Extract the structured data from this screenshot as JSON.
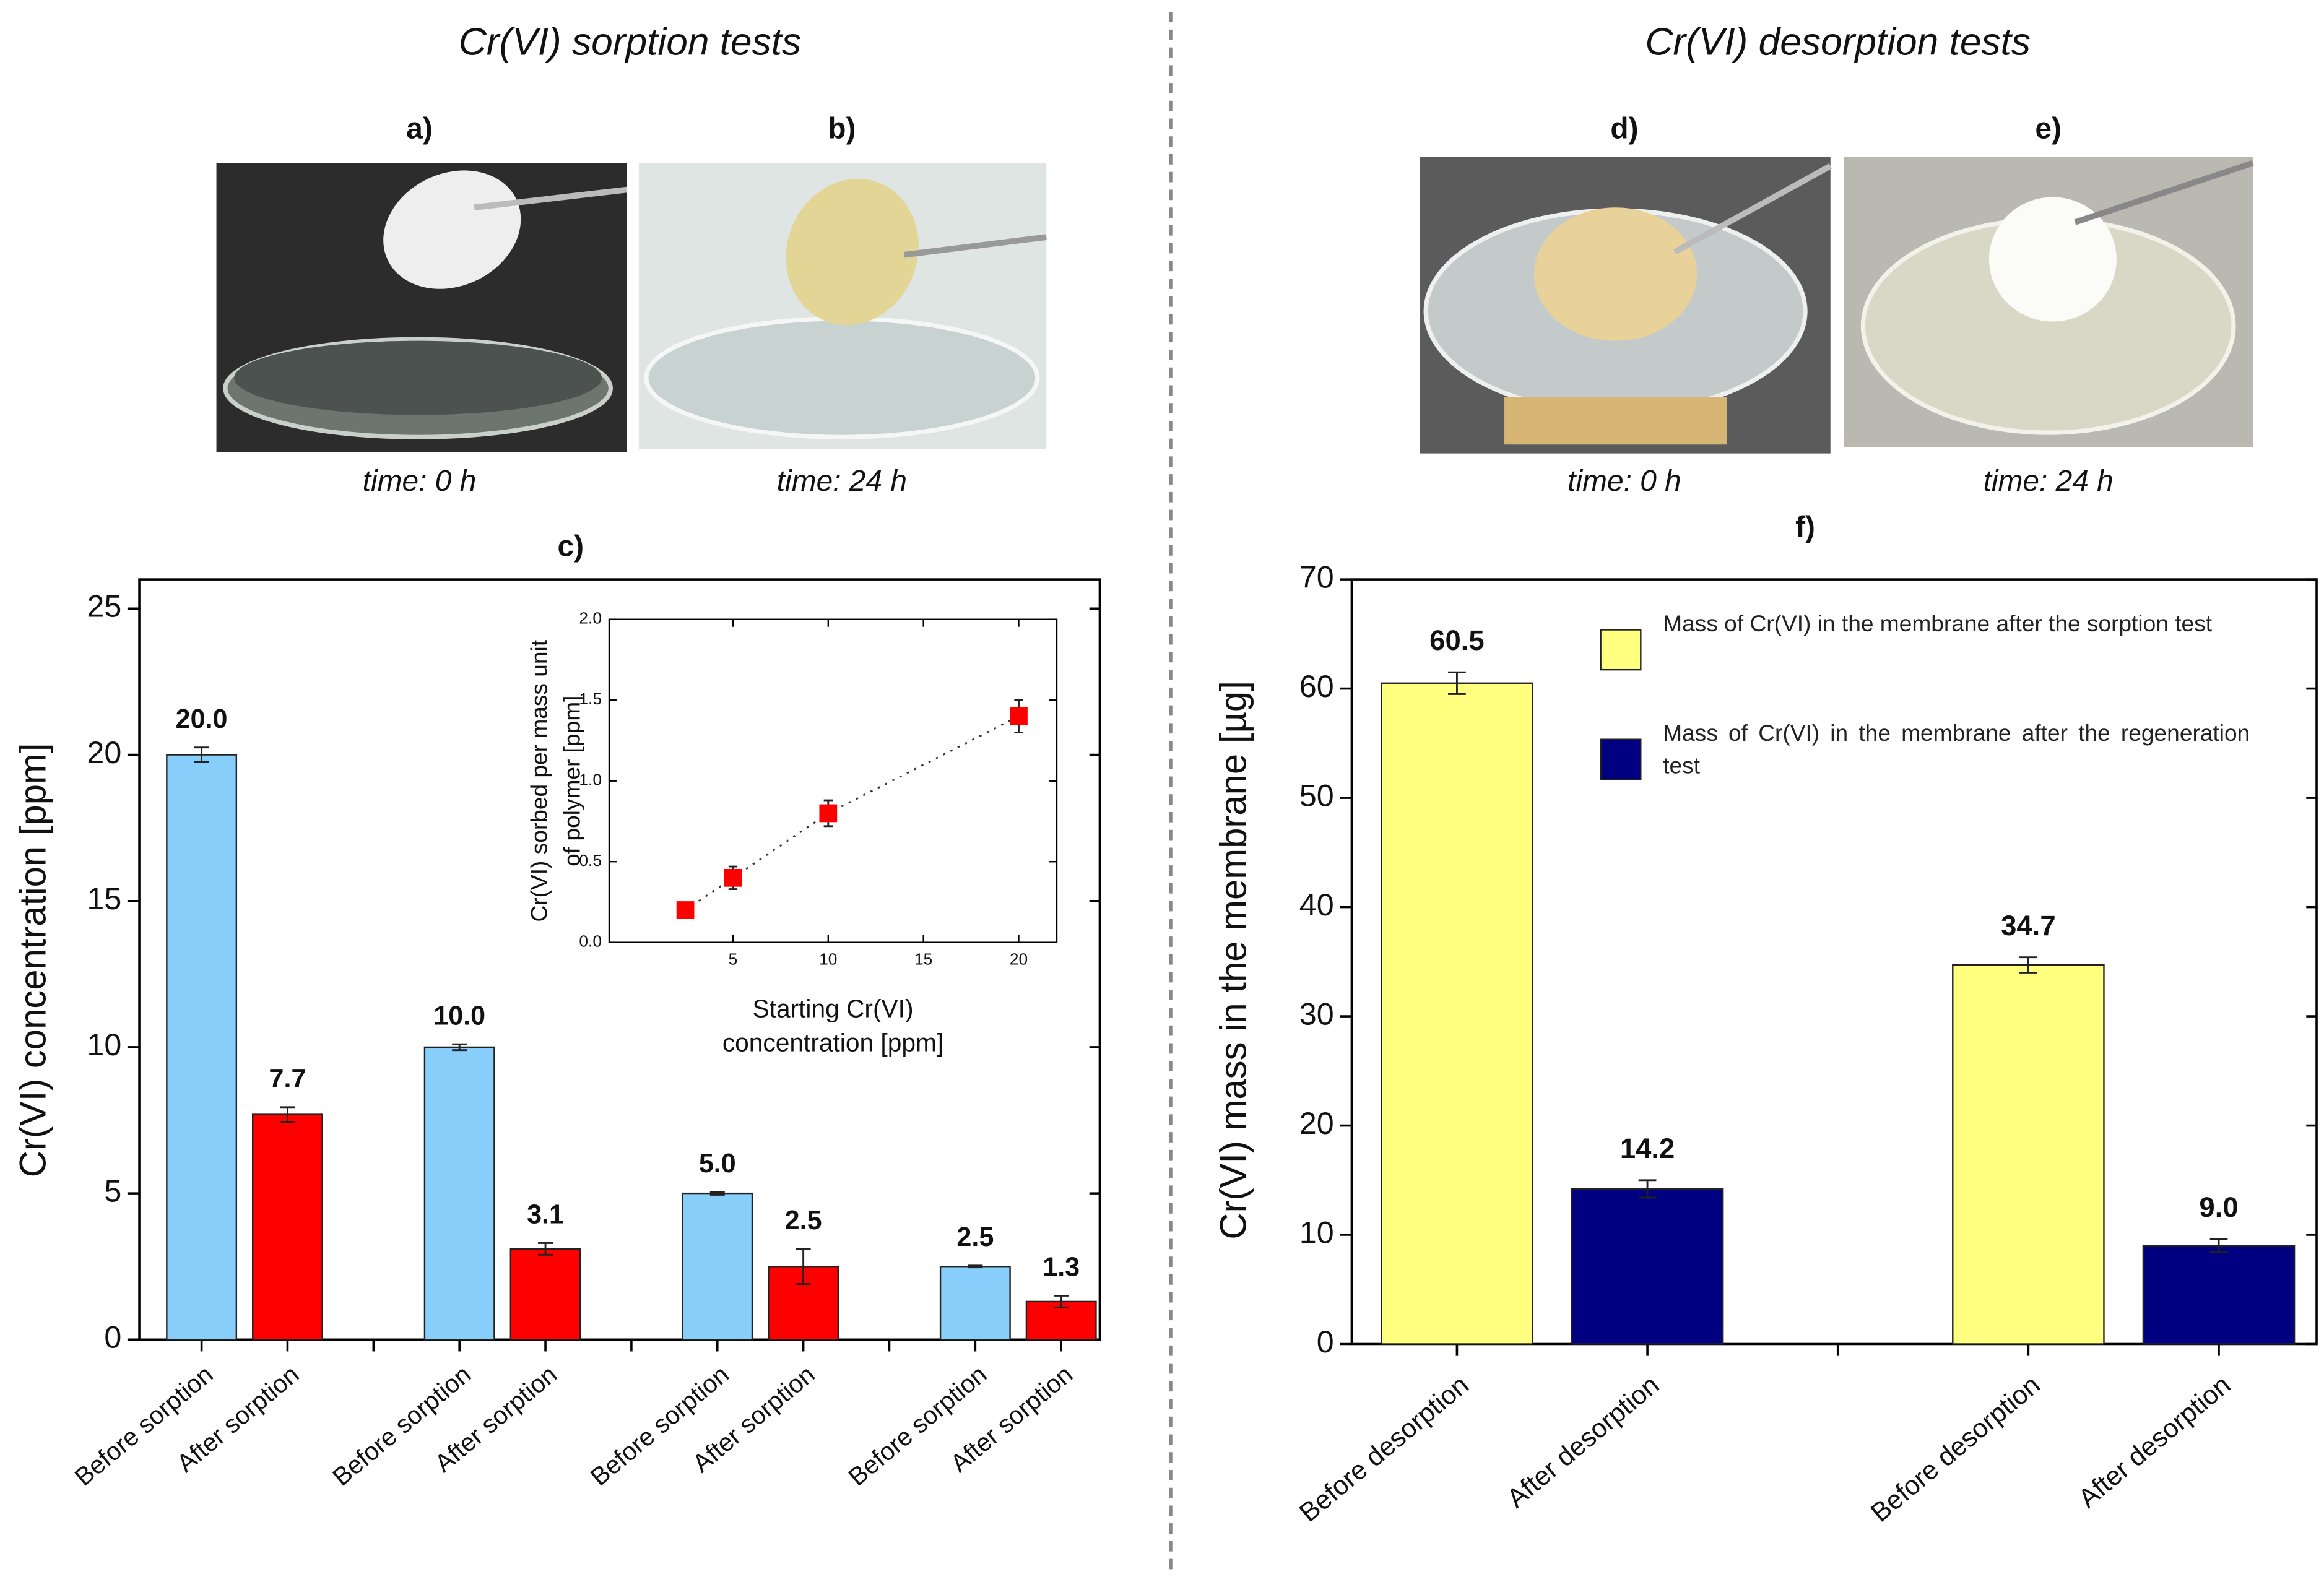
{
  "headings": [
    "Cr(VI) sorption tests",
    "Cr(VI) desorption tests"
  ],
  "photos": [
    {
      "label": "a)",
      "caption": "time: 0 h"
    },
    {
      "label": "b)",
      "caption": "time: 24 h"
    },
    {
      "label": "d)",
      "caption": "time: 0 h"
    },
    {
      "label": "e)",
      "caption": "time: 24 h"
    }
  ],
  "chart_data": [
    {
      "type": "bar",
      "label": "c)",
      "ylabel": "Cr(VI) concentration [ppm]",
      "categories": [
        "Before sorption",
        "After sorption",
        null,
        "Before sorption",
        "After sorption",
        null,
        "Before sorption",
        "After sorption",
        null,
        "Before sorption",
        "After sorption"
      ],
      "values": [
        20.0,
        7.7,
        null,
        10.0,
        3.1,
        null,
        5.0,
        2.5,
        null,
        2.5,
        1.3
      ],
      "value_labels": [
        "20.0",
        "7.7",
        null,
        "10.0",
        "3.1",
        null,
        "5.0",
        "2.5",
        null,
        "2.5",
        "1.3"
      ],
      "errors": [
        0.25,
        0.25,
        null,
        0.1,
        0.2,
        null,
        0.05,
        0.6,
        null,
        0.03,
        0.2
      ],
      "colors": [
        "#87cefa",
        "#ff0000",
        null,
        "#87cefa",
        "#ff0000",
        null,
        "#87cefa",
        "#ff0000",
        null,
        "#87cefa",
        "#ff0000"
      ],
      "ylim": [
        0,
        26
      ],
      "yticks": [
        0,
        5,
        10,
        15,
        20,
        25
      ],
      "inset": {
        "type": "scatter",
        "xlabel": [
          "Starting Cr(VI)",
          "concentration [ppm]"
        ],
        "ylabel": [
          "Cr(VI) sorbed per mass unit",
          "of polymer [ppm]"
        ],
        "x": [
          2.5,
          5,
          10,
          20
        ],
        "values": [
          0.2,
          0.4,
          0.8,
          1.4
        ],
        "errors": [
          0.03,
          0.07,
          0.08,
          0.1
        ],
        "color": "#ff0000",
        "xlim": [
          -1.5,
          22
        ],
        "xticks": [
          5,
          10,
          15,
          20
        ],
        "ylim": [
          0,
          2
        ],
        "yticks": [
          {
            "value": 0,
            "label": "0.0"
          },
          {
            "value": 0.5,
            "label": "0.5"
          },
          {
            "value": 1,
            "label": "1.0"
          },
          {
            "value": 1.5,
            "label": "1.5"
          },
          {
            "value": 2,
            "label": "2.0"
          }
        ]
      }
    },
    {
      "type": "bar",
      "label": "f)",
      "ylabel": "Cr(VI) mass in the membrane [µg]",
      "categories": [
        "Before desorption",
        "After desorption",
        null,
        "Before desorption",
        "After desorption"
      ],
      "series": [
        {
          "name": "Mass of Cr(VI) in the membrane after the sorption test",
          "color": "#ffff80",
          "values": [
            60.5,
            null,
            null,
            34.7,
            null
          ],
          "value_labels": [
            "60.5",
            null,
            null,
            "34.7",
            null
          ],
          "errors": [
            1.0,
            null,
            null,
            0.7,
            null
          ]
        },
        {
          "name": "Mass of Cr(VI) in the membrane after the regeneration test",
          "color": "#000080",
          "values": [
            null,
            14.2,
            null,
            null,
            9.0
          ],
          "value_labels": [
            null,
            "14.2",
            null,
            null,
            "9.0"
          ],
          "errors": [
            null,
            0.8,
            null,
            null,
            0.6
          ]
        }
      ],
      "ylim": [
        0,
        70
      ],
      "yticks": [
        0,
        10,
        20,
        30,
        40,
        50,
        60,
        70
      ]
    }
  ]
}
